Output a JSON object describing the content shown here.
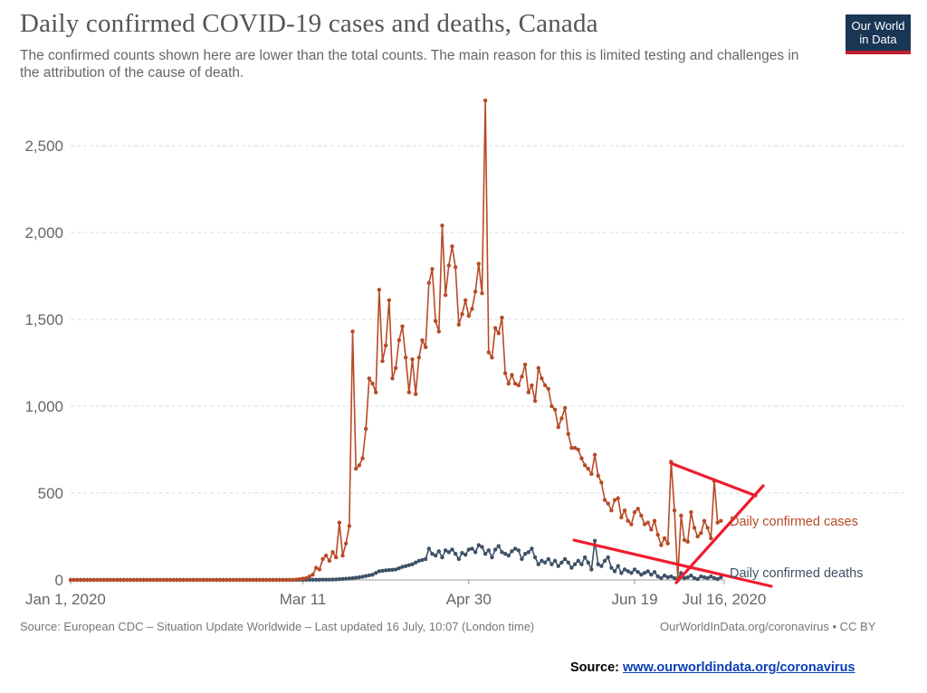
{
  "header": {
    "title": "Daily confirmed COVID-19 cases and deaths, Canada",
    "subtitle": "The confirmed counts shown here are lower than the total counts. The main reason for this is limited testing and challenges in the attribution of the cause of death.",
    "logo_line1": "Our World",
    "logo_line2": "in Data"
  },
  "footer": {
    "source_left": "Source: European CDC – Situation Update Worldwide – Last updated 16 July, 10:07 (London time)",
    "source_right": "OurWorldInData.org/coronavirus • CC BY",
    "note_label": "Source:",
    "note_link": "www.ourworldindata.org/coronavirus"
  },
  "colors": {
    "cases": "#b84a27",
    "deaths": "#3d5066",
    "annotation": "#ee1c2e",
    "grid": "#dddddd",
    "tick_text": "#666666"
  },
  "chart_data": {
    "type": "line",
    "title": "Daily confirmed COVID-19 cases and deaths, Canada",
    "xlabel": "",
    "ylabel": "",
    "x_start": "2020-01-01",
    "x_end": "2020-07-16",
    "ylim": [
      0,
      2750
    ],
    "y_ticks": [
      0,
      500,
      1000,
      1500,
      2000,
      2500
    ],
    "y_tick_labels": [
      "0",
      "500",
      "1,000",
      "1,500",
      "2,000",
      "2,500"
    ],
    "x_tick_labels": [
      {
        "date": "2020-01-01",
        "label": "Jan 1, 2020"
      },
      {
        "date": "2020-03-11",
        "label": "Mar 11"
      },
      {
        "date": "2020-04-30",
        "label": "Apr 30"
      },
      {
        "date": "2020-06-19",
        "label": "Jun 19"
      },
      {
        "date": "2020-07-16",
        "label": "Jul 16, 2020"
      }
    ],
    "grid": "horizontal dashed",
    "series": [
      {
        "name": "Daily confirmed cases",
        "values": [
          [
            "2020-01-01",
            0
          ],
          [
            "2020-03-08",
            0
          ],
          [
            "2020-03-10",
            5
          ],
          [
            "2020-03-12",
            10
          ],
          [
            "2020-03-14",
            30
          ],
          [
            "2020-03-15",
            70
          ],
          [
            "2020-03-16",
            60
          ],
          [
            "2020-03-17",
            120
          ],
          [
            "2020-03-18",
            140
          ],
          [
            "2020-03-19",
            110
          ],
          [
            "2020-03-20",
            160
          ],
          [
            "2020-03-21",
            130
          ],
          [
            "2020-03-22",
            330
          ],
          [
            "2020-03-23",
            140
          ],
          [
            "2020-03-24",
            210
          ],
          [
            "2020-03-25",
            310
          ],
          [
            "2020-03-26",
            1430
          ],
          [
            "2020-03-27",
            640
          ],
          [
            "2020-03-28",
            660
          ],
          [
            "2020-03-29",
            700
          ],
          [
            "2020-03-30",
            870
          ],
          [
            "2020-03-31",
            1160
          ],
          [
            "2020-04-01",
            1130
          ],
          [
            "2020-04-02",
            1080
          ],
          [
            "2020-04-03",
            1670
          ],
          [
            "2020-04-04",
            1260
          ],
          [
            "2020-04-05",
            1350
          ],
          [
            "2020-04-06",
            1610
          ],
          [
            "2020-04-07",
            1160
          ],
          [
            "2020-04-08",
            1220
          ],
          [
            "2020-04-09",
            1380
          ],
          [
            "2020-04-10",
            1460
          ],
          [
            "2020-04-11",
            1280
          ],
          [
            "2020-04-12",
            1080
          ],
          [
            "2020-04-13",
            1270
          ],
          [
            "2020-04-14",
            1070
          ],
          [
            "2020-04-15",
            1280
          ],
          [
            "2020-04-16",
            1380
          ],
          [
            "2020-04-17",
            1340
          ],
          [
            "2020-04-18",
            1710
          ],
          [
            "2020-04-19",
            1790
          ],
          [
            "2020-04-20",
            1490
          ],
          [
            "2020-04-21",
            1430
          ],
          [
            "2020-04-22",
            2040
          ],
          [
            "2020-04-23",
            1640
          ],
          [
            "2020-04-24",
            1810
          ],
          [
            "2020-04-25",
            1920
          ],
          [
            "2020-04-26",
            1800
          ],
          [
            "2020-04-27",
            1470
          ],
          [
            "2020-04-28",
            1530
          ],
          [
            "2020-04-29",
            1610
          ],
          [
            "2020-04-30",
            1520
          ],
          [
            "2020-05-01",
            1560
          ],
          [
            "2020-05-02",
            1660
          ],
          [
            "2020-05-03",
            1820
          ],
          [
            "2020-05-04",
            1650
          ],
          [
            "2020-05-05",
            2760
          ],
          [
            "2020-05-06",
            1310
          ],
          [
            "2020-05-07",
            1280
          ],
          [
            "2020-05-08",
            1450
          ],
          [
            "2020-05-09",
            1420
          ],
          [
            "2020-05-10",
            1510
          ],
          [
            "2020-05-11",
            1190
          ],
          [
            "2020-05-12",
            1130
          ],
          [
            "2020-05-13",
            1180
          ],
          [
            "2020-05-14",
            1130
          ],
          [
            "2020-05-15",
            1120
          ],
          [
            "2020-05-16",
            1170
          ],
          [
            "2020-05-17",
            1240
          ],
          [
            "2020-05-18",
            1080
          ],
          [
            "2020-05-19",
            1120
          ],
          [
            "2020-05-20",
            1030
          ],
          [
            "2020-05-21",
            1220
          ],
          [
            "2020-05-22",
            1160
          ],
          [
            "2020-05-23",
            1120
          ],
          [
            "2020-05-24",
            1100
          ],
          [
            "2020-05-25",
            1000
          ],
          [
            "2020-05-26",
            980
          ],
          [
            "2020-05-27",
            880
          ],
          [
            "2020-05-28",
            930
          ],
          [
            "2020-05-29",
            990
          ],
          [
            "2020-05-30",
            840
          ],
          [
            "2020-05-31",
            760
          ],
          [
            "2020-06-01",
            760
          ],
          [
            "2020-06-02",
            750
          ],
          [
            "2020-06-03",
            700
          ],
          [
            "2020-06-04",
            660
          ],
          [
            "2020-06-05",
            640
          ],
          [
            "2020-06-06",
            610
          ],
          [
            "2020-06-07",
            720
          ],
          [
            "2020-06-08",
            600
          ],
          [
            "2020-06-09",
            560
          ],
          [
            "2020-06-10",
            460
          ],
          [
            "2020-06-11",
            440
          ],
          [
            "2020-06-12",
            400
          ],
          [
            "2020-06-13",
            460
          ],
          [
            "2020-06-14",
            470
          ],
          [
            "2020-06-15",
            360
          ],
          [
            "2020-06-16",
            400
          ],
          [
            "2020-06-17",
            340
          ],
          [
            "2020-06-18",
            320
          ],
          [
            "2020-06-19",
            390
          ],
          [
            "2020-06-20",
            410
          ],
          [
            "2020-06-21",
            370
          ],
          [
            "2020-06-22",
            320
          ],
          [
            "2020-06-23",
            330
          ],
          [
            "2020-06-24",
            290
          ],
          [
            "2020-06-25",
            340
          ],
          [
            "2020-06-26",
            260
          ],
          [
            "2020-06-27",
            200
          ],
          [
            "2020-06-28",
            240
          ],
          [
            "2020-06-29",
            210
          ],
          [
            "2020-06-30",
            680
          ],
          [
            "2020-07-01",
            400
          ],
          [
            "2020-07-02",
            10
          ],
          [
            "2020-07-03",
            370
          ],
          [
            "2020-07-04",
            230
          ],
          [
            "2020-07-05",
            220
          ],
          [
            "2020-07-06",
            390
          ],
          [
            "2020-07-07",
            300
          ],
          [
            "2020-07-08",
            250
          ],
          [
            "2020-07-09",
            270
          ],
          [
            "2020-07-10",
            340
          ],
          [
            "2020-07-11",
            300
          ],
          [
            "2020-07-12",
            240
          ],
          [
            "2020-07-13",
            570
          ],
          [
            "2020-07-14",
            330
          ],
          [
            "2020-07-15",
            340
          ]
        ]
      },
      {
        "name": "Daily confirmed deaths",
        "values": [
          [
            "2020-01-01",
            0
          ],
          [
            "2020-03-10",
            0
          ],
          [
            "2020-03-20",
            2
          ],
          [
            "2020-03-25",
            8
          ],
          [
            "2020-03-28",
            15
          ],
          [
            "2020-04-01",
            30
          ],
          [
            "2020-04-03",
            50
          ],
          [
            "2020-04-05",
            55
          ],
          [
            "2020-04-08",
            60
          ],
          [
            "2020-04-10",
            75
          ],
          [
            "2020-04-13",
            90
          ],
          [
            "2020-04-15",
            110
          ],
          [
            "2020-04-17",
            120
          ],
          [
            "2020-04-18",
            180
          ],
          [
            "2020-04-19",
            150
          ],
          [
            "2020-04-20",
            140
          ],
          [
            "2020-04-21",
            165
          ],
          [
            "2020-04-22",
            130
          ],
          [
            "2020-04-23",
            170
          ],
          [
            "2020-04-24",
            160
          ],
          [
            "2020-04-25",
            175
          ],
          [
            "2020-04-26",
            150
          ],
          [
            "2020-04-27",
            120
          ],
          [
            "2020-04-28",
            155
          ],
          [
            "2020-04-29",
            145
          ],
          [
            "2020-04-30",
            175
          ],
          [
            "2020-05-01",
            180
          ],
          [
            "2020-05-02",
            160
          ],
          [
            "2020-05-03",
            200
          ],
          [
            "2020-05-04",
            190
          ],
          [
            "2020-05-05",
            150
          ],
          [
            "2020-05-06",
            170
          ],
          [
            "2020-05-07",
            130
          ],
          [
            "2020-05-08",
            175
          ],
          [
            "2020-05-09",
            195
          ],
          [
            "2020-05-10",
            160
          ],
          [
            "2020-05-11",
            150
          ],
          [
            "2020-05-12",
            140
          ],
          [
            "2020-05-13",
            165
          ],
          [
            "2020-05-14",
            180
          ],
          [
            "2020-05-15",
            170
          ],
          [
            "2020-05-16",
            120
          ],
          [
            "2020-05-17",
            150
          ],
          [
            "2020-05-18",
            160
          ],
          [
            "2020-05-19",
            180
          ],
          [
            "2020-05-20",
            130
          ],
          [
            "2020-05-21",
            90
          ],
          [
            "2020-05-22",
            110
          ],
          [
            "2020-05-23",
            100
          ],
          [
            "2020-05-24",
            120
          ],
          [
            "2020-05-25",
            90
          ],
          [
            "2020-05-26",
            110
          ],
          [
            "2020-05-27",
            80
          ],
          [
            "2020-05-28",
            100
          ],
          [
            "2020-05-29",
            120
          ],
          [
            "2020-05-30",
            100
          ],
          [
            "2020-05-31",
            70
          ],
          [
            "2020-06-01",
            90
          ],
          [
            "2020-06-02",
            110
          ],
          [
            "2020-06-03",
            90
          ],
          [
            "2020-06-04",
            130
          ],
          [
            "2020-06-05",
            100
          ],
          [
            "2020-06-06",
            60
          ],
          [
            "2020-06-07",
            225
          ],
          [
            "2020-06-08",
            90
          ],
          [
            "2020-06-09",
            80
          ],
          [
            "2020-06-10",
            110
          ],
          [
            "2020-06-11",
            130
          ],
          [
            "2020-06-12",
            70
          ],
          [
            "2020-06-13",
            50
          ],
          [
            "2020-06-14",
            80
          ],
          [
            "2020-06-15",
            40
          ],
          [
            "2020-06-16",
            60
          ],
          [
            "2020-06-17",
            50
          ],
          [
            "2020-06-18",
            40
          ],
          [
            "2020-06-19",
            60
          ],
          [
            "2020-06-20",
            45
          ],
          [
            "2020-06-21",
            30
          ],
          [
            "2020-06-22",
            40
          ],
          [
            "2020-06-23",
            50
          ],
          [
            "2020-06-24",
            30
          ],
          [
            "2020-06-25",
            45
          ],
          [
            "2020-06-26",
            20
          ],
          [
            "2020-06-27",
            10
          ],
          [
            "2020-06-28",
            25
          ],
          [
            "2020-06-29",
            15
          ],
          [
            "2020-06-30",
            20
          ],
          [
            "2020-07-01",
            10
          ],
          [
            "2020-07-02",
            5
          ],
          [
            "2020-07-03",
            40
          ],
          [
            "2020-07-04",
            10
          ],
          [
            "2020-07-05",
            15
          ],
          [
            "2020-07-06",
            25
          ],
          [
            "2020-07-07",
            10
          ],
          [
            "2020-07-08",
            5
          ],
          [
            "2020-07-09",
            20
          ],
          [
            "2020-07-10",
            15
          ],
          [
            "2020-07-11",
            10
          ],
          [
            "2020-07-12",
            20
          ],
          [
            "2020-07-13",
            10
          ],
          [
            "2020-07-14",
            5
          ],
          [
            "2020-07-15",
            15
          ]
        ]
      }
    ],
    "annotations": [
      {
        "type": "handdrawn-trend-lines",
        "description_color": "red"
      }
    ]
  }
}
